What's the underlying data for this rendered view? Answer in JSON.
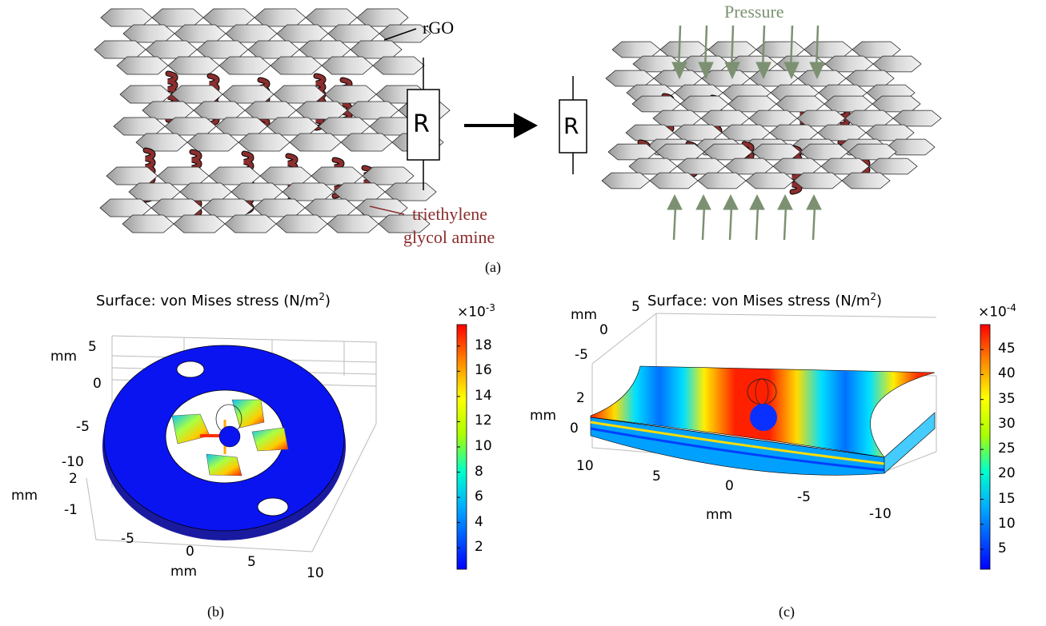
{
  "panel_a": {
    "rgo_label": "rGO",
    "chain_label_line1": "triethylene",
    "chain_label_line2": "glycol amine",
    "resistor_label": "R",
    "pressure_label": "Pressure",
    "caption": "(a)",
    "colors": {
      "chain": "#8b2e2e",
      "pressure": "#7c9172",
      "sheet": "#dcdcdc"
    }
  },
  "panel_b": {
    "title_main": "Surface: von Mises stress (N/m",
    "title_sup": "2",
    "title_close": ")",
    "colorbar_exponent_base": "×10",
    "colorbar_exponent": "-3",
    "colorbar_ticks": [
      "18",
      "16",
      "14",
      "12",
      "10",
      "8",
      "6",
      "4",
      "2"
    ],
    "y_ticks": [
      "5",
      "0",
      "-5",
      "-10"
    ],
    "z_ticks": [
      "2",
      "-1"
    ],
    "x_ticks": [
      "-5",
      "0",
      "5",
      "10"
    ],
    "unit_label": "mm",
    "caption": "(b)"
  },
  "panel_c": {
    "title_main": "Surface: von Mises stress (N/m",
    "title_sup": "2",
    "title_close": ")",
    "colorbar_exponent_base": "×10",
    "colorbar_exponent": "-4",
    "colorbar_ticks": [
      "45",
      "40",
      "35",
      "30",
      "25",
      "20",
      "15",
      "10",
      "5"
    ],
    "y_ticks": [
      "5",
      "0",
      "-5"
    ],
    "z_ticks": [
      "2",
      "0"
    ],
    "x_ticks": [
      "10",
      "5",
      "0",
      "-5",
      "-10"
    ],
    "unit_label": "mm",
    "caption": "(c)"
  }
}
